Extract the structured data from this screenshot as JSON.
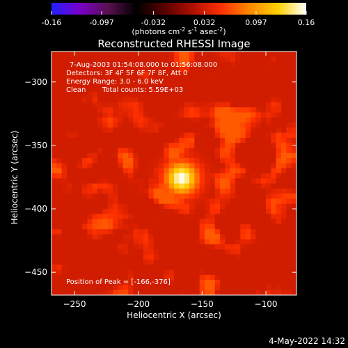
{
  "chart_data": {
    "type": "heatmap",
    "title": "Reconstructed RHESSI Image",
    "xlabel": "Heliocentric X (arcsec)",
    "ylabel": "Heliocentric Y (arcsec)",
    "xlim": [
      -268,
      -76
    ],
    "ylim": [
      -468,
      -276
    ],
    "x_ticks": [
      -250,
      -200,
      -150,
      -100
    ],
    "y_ticks": [
      -300,
      -350,
      -400,
      -450
    ],
    "colorbar": {
      "min": -0.16,
      "max": 0.16,
      "ticks": [
        "-0.16",
        "-0.097",
        "-0.032",
        "0.032",
        "0.097",
        "0.16"
      ],
      "label_main": "(photons cm",
      "label_exp1": "-2",
      "label_mid1": " s",
      "label_exp2": "-1",
      "label_mid2": " asec",
      "label_exp3": "-2",
      "label_end": ")",
      "colors": [
        "#2020ff",
        "#7a00c8",
        "#5a1050",
        "#000000",
        "#5a0000",
        "#b01000",
        "#ff3000",
        "#ff8800",
        "#ffd000",
        "#ffffff"
      ]
    },
    "peak": {
      "x": -166,
      "y": -376
    },
    "annotations": {
      "time_range": "7-Aug-2003 01:54:08.000 to 01:56:08.000",
      "detectors": "Detectors: 3F 4F 5F 6F 7F 8F, Att 0",
      "energy": "Energy Range: 3.0 - 6.0 keV",
      "clean_label": "Clean",
      "total_counts": "Total counts: 5.59E+03",
      "peak_label": "Position of Peak = [-166,-376]"
    }
  },
  "footer": {
    "timestamp": "4-May-2022 14:32"
  }
}
